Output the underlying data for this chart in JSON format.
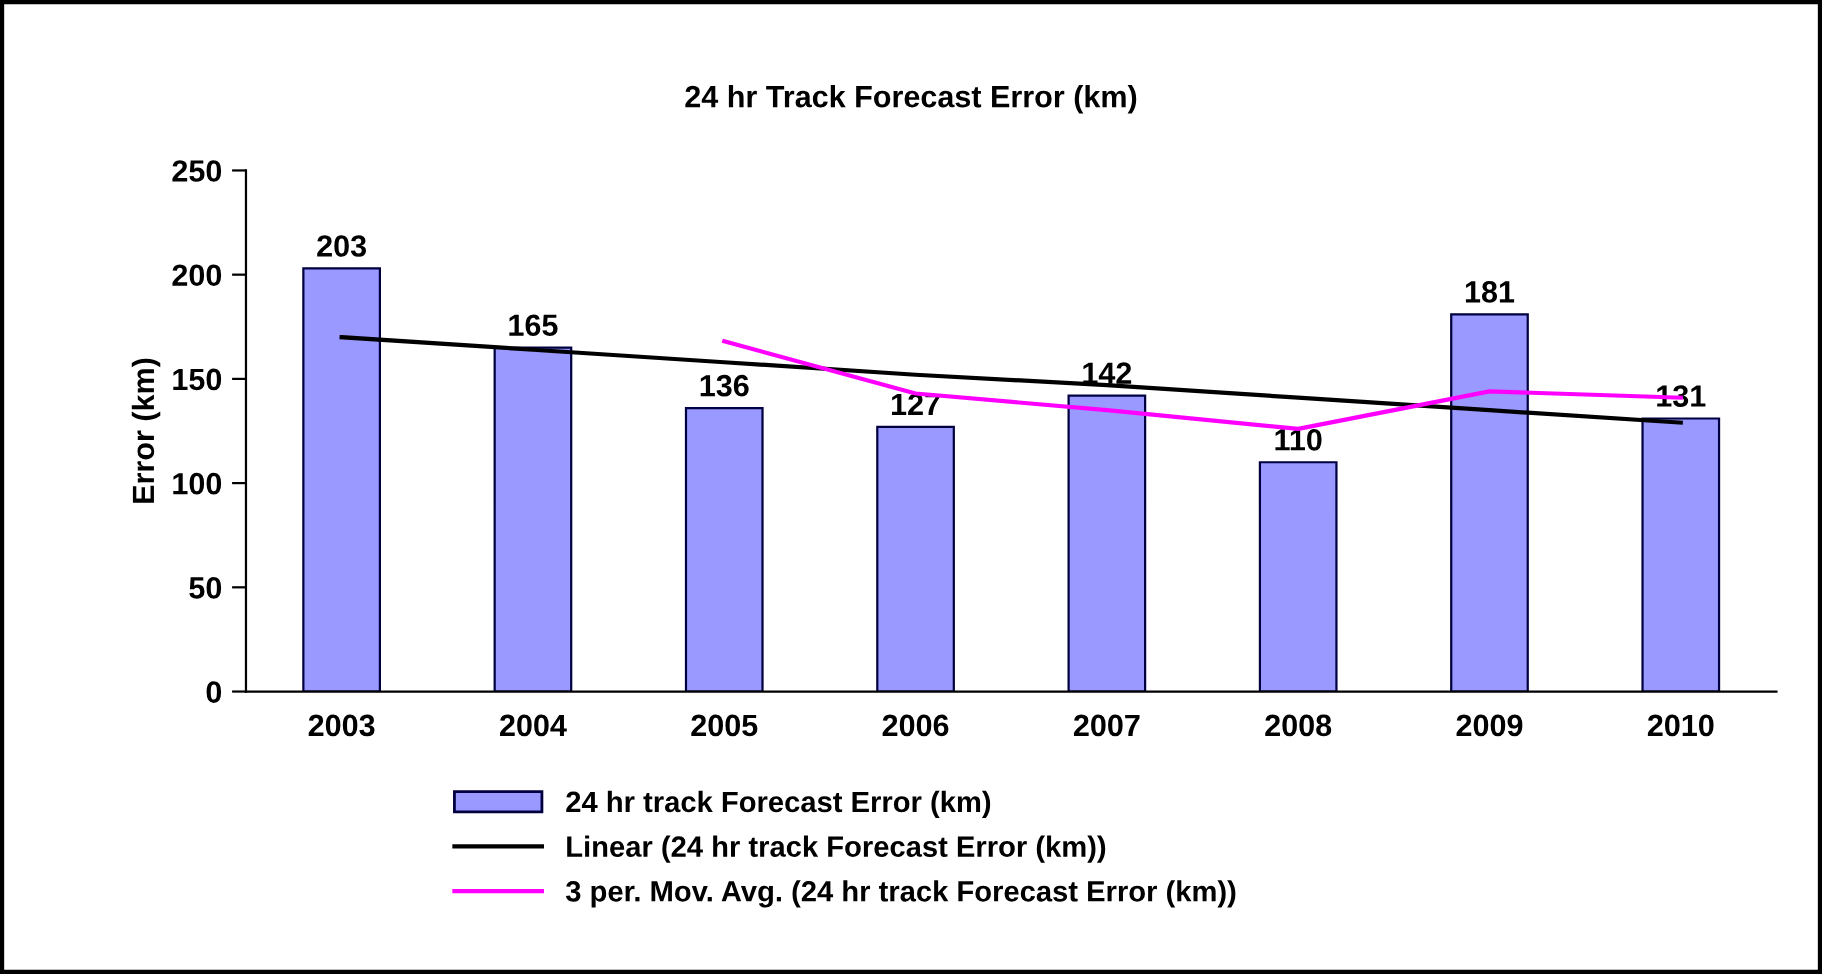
{
  "chart_data": {
    "type": "bar",
    "title": "24 hr Track Forecast Error (km)",
    "ylabel": "Error (km)",
    "categories": [
      "2003",
      "2004",
      "2005",
      "2006",
      "2007",
      "2008",
      "2009",
      "2010"
    ],
    "series": [
      {
        "name": "24 hr track Forecast Error (km)",
        "color": "#9999ff",
        "values": [
          203,
          165,
          136,
          127,
          142,
          110,
          181,
          131
        ],
        "data_labels": true
      },
      {
        "name": "Linear (24 hr track Forecast Error (km))",
        "type": "line",
        "color": "#000000",
        "values": [
          170,
          164,
          158,
          152,
          147,
          141,
          135,
          129
        ]
      },
      {
        "name": "3 per. Mov. Avg. (24 hr track Forecast Error (km))",
        "type": "line",
        "color": "#ff00ff",
        "values": [
          null,
          null,
          168,
          143,
          135,
          126,
          144,
          141
        ]
      }
    ],
    "ylim": [
      0,
      250
    ],
    "yticks": [
      0,
      50,
      100,
      150,
      200,
      250
    ],
    "grid": false,
    "legend": "bottom",
    "marker": "none",
    "line_style": "solid"
  }
}
